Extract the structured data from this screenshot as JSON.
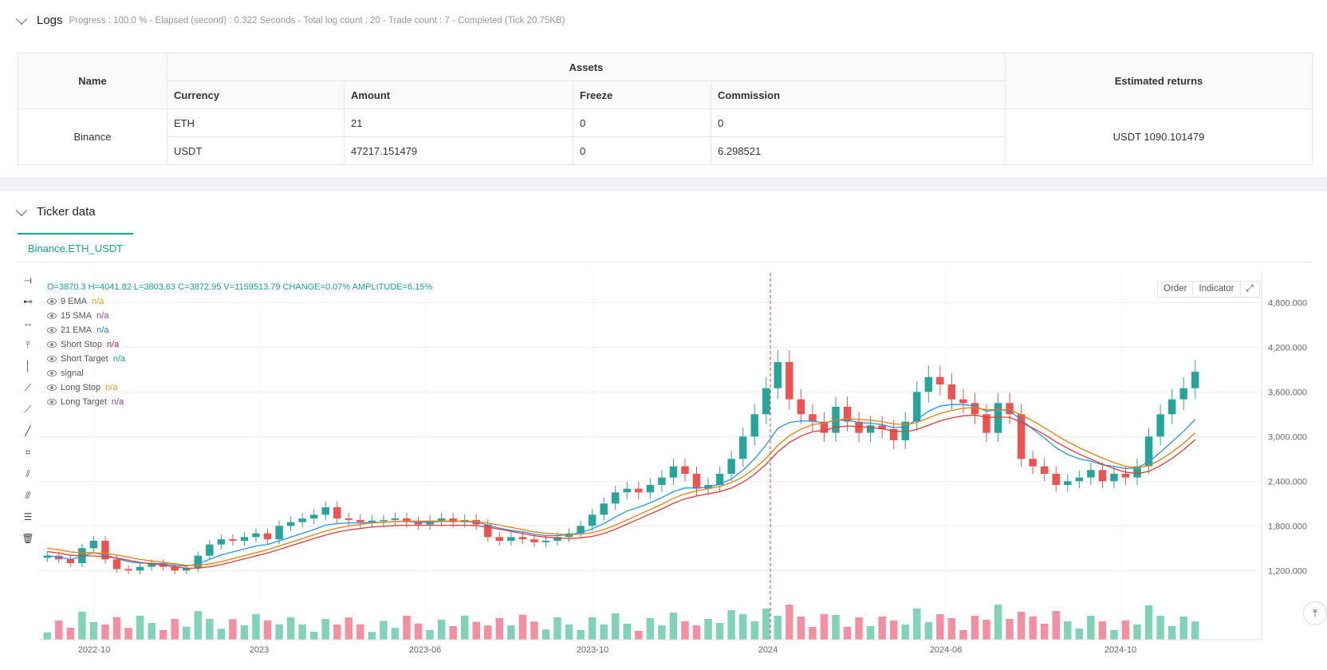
{
  "logs": {
    "title": "Logs",
    "meta": "Progress : 100.0 % - Elapsed (second) : 0.322  Seconds - Total log count : 20 - Trade count : 7 - Completed (Tick 20.75KB)"
  },
  "assets_table": {
    "headers": {
      "name": "Name",
      "assets": "Assets",
      "estimated": "Estimated returns",
      "currency": "Currency",
      "amount": "Amount",
      "freeze": "Freeze",
      "commission": "Commission"
    },
    "exchange": "Binance",
    "rows": [
      {
        "currency": "ETH",
        "amount": "21",
        "freeze": "0",
        "commission": "0"
      },
      {
        "currency": "USDT",
        "amount": "47217.151479",
        "freeze": "0",
        "commission": "6.298521"
      }
    ],
    "estimated_returns": "USDT 1090.101479"
  },
  "ticker": {
    "title": "Ticker data",
    "tab": "Binance.ETH_USDT"
  },
  "legend": {
    "ohlc": "O=3870.3 H=4041.82 L=3803.63 C=3872.95 V=1159513.79 CHANGE=0.07% AMPLITUDE=6.15%",
    "items": [
      {
        "name": "9 EMA",
        "value": "n/a",
        "color": "#f39c12"
      },
      {
        "name": "15 SMA",
        "value": "n/a",
        "color": "#8e44ad"
      },
      {
        "name": "21 EMA",
        "value": "n/a",
        "color": "#2980b9"
      },
      {
        "name": "Short Stop",
        "value": "n/a",
        "color": "#c2185b"
      },
      {
        "name": "Short Target",
        "value": "n/a",
        "color": "#16a0a0"
      },
      {
        "name": "signal",
        "value": "",
        "color": "#555555"
      },
      {
        "name": "Long Stop",
        "value": "n/a",
        "color": "#f39c12"
      },
      {
        "name": "Long Target",
        "value": "n/a",
        "color": "#8e44ad"
      }
    ]
  },
  "chart_buttons": {
    "order": "Order",
    "indicator": "Indicator"
  },
  "chart_data": {
    "type": "candlestick",
    "x_ticks": [
      "2022-10",
      "2023",
      "2023-06",
      "2023-10",
      "2024",
      "2024-06",
      "2024-10"
    ],
    "y_ticks": [
      1200000,
      1800000,
      2400000,
      3000000,
      3600000,
      4200000,
      4800000
    ],
    "y_tick_labels": [
      "1,200.000",
      "1,800.000",
      "2,400.000",
      "3,000.000",
      "3,600.000",
      "4,200.000",
      "4,800.000"
    ],
    "ylim": [
      700000,
      5200000
    ],
    "close_series": [
      1400000,
      1350000,
      1300000,
      1500000,
      1600000,
      1350000,
      1220000,
      1200000,
      1250000,
      1300000,
      1250000,
      1200000,
      1230000,
      1400000,
      1550000,
      1620000,
      1600000,
      1650000,
      1700000,
      1620000,
      1800000,
      1850000,
      1900000,
      1950000,
      2050000,
      1900000,
      1880000,
      1850000,
      1870000,
      1880000,
      1900000,
      1850000,
      1820000,
      1870000,
      1900000,
      1850000,
      1880000,
      1820000,
      1650000,
      1600000,
      1650000,
      1620000,
      1580000,
      1600000,
      1650000,
      1700000,
      1800000,
      1950000,
      2100000,
      2250000,
      2300000,
      2250000,
      2350000,
      2450000,
      2600000,
      2500000,
      2300000,
      2350000,
      2500000,
      2700000,
      3000000,
      3300000,
      3650000,
      4000000,
      3500000,
      3300000,
      3200000,
      3050000,
      3400000,
      3200000,
      3050000,
      3150000,
      3100000,
      2950000,
      3200000,
      3600000,
      3800000,
      3700000,
      3500000,
      3450000,
      3300000,
      3050000,
      3450000,
      3300000,
      2700000,
      2600000,
      2500000,
      2350000,
      2400000,
      2450000,
      2550000,
      2400000,
      2500000,
      2450000,
      2600000,
      3000000,
      3300000,
      3500000,
      3650000,
      3870000
    ],
    "volume_ticks_max": 1,
    "ema9": [
      1400000,
      1380000,
      1350000,
      1390000,
      1440000,
      1410000,
      1360000,
      1320000,
      1300000,
      1300000,
      1290000,
      1270000,
      1260000,
      1290000,
      1350000,
      1410000,
      1450000,
      1490000,
      1530000,
      1550000,
      1600000,
      1650000,
      1700000,
      1750000,
      1810000,
      1830000,
      1840000,
      1840000,
      1846000,
      1850000,
      1860000,
      1860000,
      1850000,
      1850000,
      1860000,
      1860000,
      1860000,
      1850000,
      1810000,
      1770000,
      1740000,
      1720000,
      1690000,
      1670000,
      1670000,
      1680000,
      1710000,
      1760000,
      1830000,
      1920000,
      2000000,
      2050000,
      2110000,
      2180000,
      2260000,
      2310000,
      2310000,
      2320000,
      2360000,
      2430000,
      2550000,
      2700000,
      2890000,
      3110000,
      3190000,
      3210000,
      3210000,
      3180000,
      3220000,
      3220000,
      3190000,
      3180000,
      3160000,
      3120000,
      3130000,
      3230000,
      3340000,
      3410000,
      3430000,
      3430000,
      3410000,
      3340000,
      3360000,
      3350000,
      3220000,
      3100000,
      2980000,
      2850000,
      2760000,
      2700000,
      2670000,
      2620000,
      2600000,
      2570000,
      2580000,
      2660000,
      2790000,
      2930000,
      3070000,
      3230000
    ],
    "sma15": [
      1500000,
      1480000,
      1450000,
      1440000,
      1440000,
      1430000,
      1410000,
      1380000,
      1350000,
      1330000,
      1310000,
      1290000,
      1270000,
      1270000,
      1290000,
      1320000,
      1360000,
      1400000,
      1440000,
      1480000,
      1530000,
      1580000,
      1630000,
      1680000,
      1730000,
      1770000,
      1800000,
      1820000,
      1840000,
      1850000,
      1860000,
      1865000,
      1865000,
      1865000,
      1865000,
      1865000,
      1865000,
      1860000,
      1840000,
      1810000,
      1780000,
      1750000,
      1720000,
      1700000,
      1690000,
      1680000,
      1690000,
      1710000,
      1750000,
      1810000,
      1880000,
      1950000,
      2020000,
      2090000,
      2170000,
      2230000,
      2270000,
      2300000,
      2330000,
      2380000,
      2460000,
      2570000,
      2710000,
      2880000,
      3010000,
      3100000,
      3160000,
      3180000,
      3220000,
      3240000,
      3230000,
      3220000,
      3200000,
      3170000,
      3160000,
      3190000,
      3250000,
      3310000,
      3350000,
      3380000,
      3390000,
      3360000,
      3360000,
      3360000,
      3290000,
      3210000,
      3120000,
      3020000,
      2930000,
      2850000,
      2780000,
      2710000,
      2650000,
      2600000,
      2580000,
      2610000,
      2690000,
      2790000,
      2910000,
      3050000
    ]
  }
}
